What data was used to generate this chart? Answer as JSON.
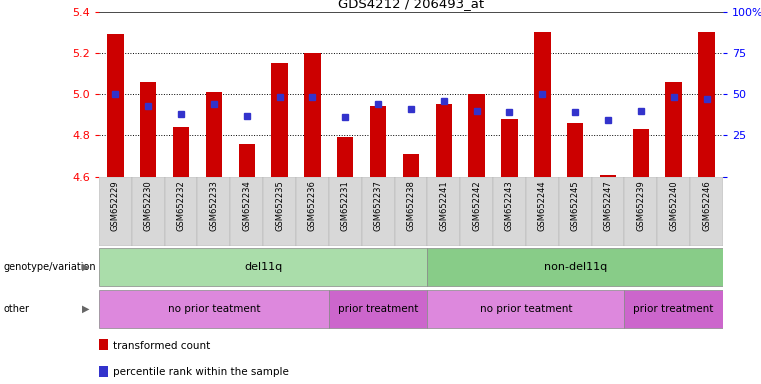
{
  "title": "GDS4212 / 206493_at",
  "samples": [
    "GSM652229",
    "GSM652230",
    "GSM652232",
    "GSM652233",
    "GSM652234",
    "GSM652235",
    "GSM652236",
    "GSM652231",
    "GSM652237",
    "GSM652238",
    "GSM652241",
    "GSM652242",
    "GSM652243",
    "GSM652244",
    "GSM652245",
    "GSM652247",
    "GSM652239",
    "GSM652240",
    "GSM652246"
  ],
  "red_values": [
    5.29,
    5.06,
    4.84,
    5.01,
    4.76,
    5.15,
    5.2,
    4.79,
    4.94,
    4.71,
    4.95,
    5.0,
    4.88,
    5.3,
    4.86,
    4.61,
    4.83,
    5.06,
    5.3
  ],
  "blue_values": [
    0.5,
    0.43,
    0.38,
    0.44,
    0.37,
    0.48,
    0.48,
    0.36,
    0.44,
    0.41,
    0.46,
    0.4,
    0.39,
    0.5,
    0.39,
    0.34,
    0.4,
    0.48,
    0.47
  ],
  "ymin": 4.6,
  "ymax": 5.4,
  "yticks_left": [
    4.6,
    4.8,
    5.0,
    5.2,
    5.4
  ],
  "yticks_right": [
    0,
    25,
    50,
    75,
    100
  ],
  "bar_color": "#cc0000",
  "dot_color": "#3333cc",
  "genotype_groups": [
    {
      "label": "del11q",
      "start": 0,
      "end": 10,
      "color": "#aaddaa"
    },
    {
      "label": "non-del11q",
      "start": 10,
      "end": 19,
      "color": "#88cc88"
    }
  ],
  "other_groups": [
    {
      "label": "no prior teatment",
      "start": 0,
      "end": 7,
      "color": "#dd88dd"
    },
    {
      "label": "prior treatment",
      "start": 7,
      "end": 10,
      "color": "#cc66cc"
    },
    {
      "label": "no prior teatment",
      "start": 10,
      "end": 16,
      "color": "#dd88dd"
    },
    {
      "label": "prior treatment",
      "start": 16,
      "end": 19,
      "color": "#cc66cc"
    }
  ],
  "legend_items": [
    {
      "color": "#cc0000",
      "label": "transformed count"
    },
    {
      "color": "#3333cc",
      "label": "percentile rank within the sample"
    }
  ],
  "bar_width": 0.5
}
